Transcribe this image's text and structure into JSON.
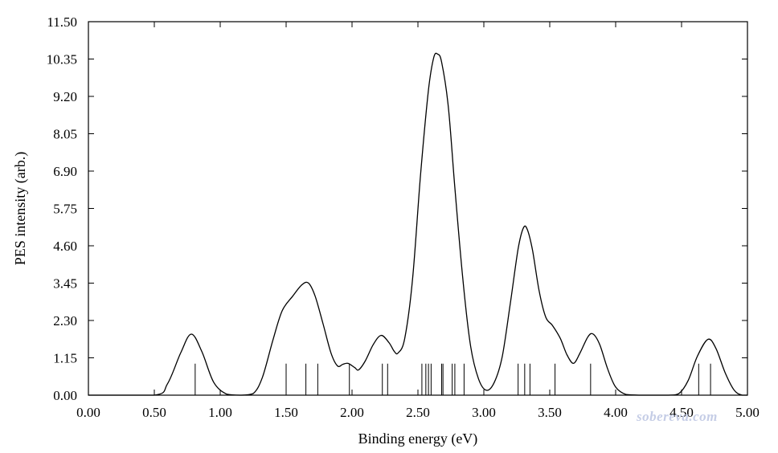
{
  "chart_data": {
    "type": "line",
    "title": "",
    "xlabel": "Binding energy (eV)",
    "ylabel": "PES intensity (arb.)",
    "xlim": [
      0.0,
      5.0
    ],
    "ylim": [
      0.0,
      11.5
    ],
    "x_ticks": [
      "0.00",
      "0.50",
      "1.00",
      "1.50",
      "2.00",
      "2.50",
      "3.00",
      "3.50",
      "4.00",
      "4.50",
      "5.00"
    ],
    "y_ticks": [
      "0.00",
      "1.15",
      "2.30",
      "3.45",
      "4.60",
      "5.75",
      "6.90",
      "8.05",
      "9.20",
      "10.35",
      "11.50"
    ],
    "grid": false,
    "legend": "none",
    "series": [
      {
        "kind": "curve",
        "points": [
          [
            0.0,
            0.0
          ],
          [
            0.5,
            0.0
          ],
          [
            0.6,
            0.35
          ],
          [
            0.7,
            1.3
          ],
          [
            0.78,
            1.88
          ],
          [
            0.86,
            1.35
          ],
          [
            0.95,
            0.4
          ],
          [
            1.05,
            0.03
          ],
          [
            1.15,
            0.0
          ],
          [
            1.25,
            0.05
          ],
          [
            1.32,
            0.55
          ],
          [
            1.4,
            1.7
          ],
          [
            1.47,
            2.6
          ],
          [
            1.55,
            3.05
          ],
          [
            1.62,
            3.4
          ],
          [
            1.67,
            3.45
          ],
          [
            1.72,
            3.05
          ],
          [
            1.78,
            2.2
          ],
          [
            1.84,
            1.3
          ],
          [
            1.89,
            0.9
          ],
          [
            1.93,
            0.95
          ],
          [
            1.97,
            0.98
          ],
          [
            2.02,
            0.85
          ],
          [
            2.05,
            0.78
          ],
          [
            2.1,
            1.05
          ],
          [
            2.16,
            1.55
          ],
          [
            2.22,
            1.84
          ],
          [
            2.28,
            1.62
          ],
          [
            2.32,
            1.35
          ],
          [
            2.35,
            1.3
          ],
          [
            2.4,
            1.75
          ],
          [
            2.46,
            3.6
          ],
          [
            2.52,
            6.8
          ],
          [
            2.58,
            9.4
          ],
          [
            2.62,
            10.4
          ],
          [
            2.65,
            10.5
          ],
          [
            2.68,
            10.25
          ],
          [
            2.73,
            8.9
          ],
          [
            2.78,
            6.4
          ],
          [
            2.84,
            3.6
          ],
          [
            2.9,
            1.5
          ],
          [
            2.96,
            0.5
          ],
          [
            3.02,
            0.15
          ],
          [
            3.08,
            0.4
          ],
          [
            3.14,
            1.2
          ],
          [
            3.2,
            2.8
          ],
          [
            3.26,
            4.5
          ],
          [
            3.3,
            5.15
          ],
          [
            3.33,
            5.1
          ],
          [
            3.37,
            4.45
          ],
          [
            3.42,
            3.2
          ],
          [
            3.47,
            2.4
          ],
          [
            3.52,
            2.15
          ],
          [
            3.58,
            1.75
          ],
          [
            3.63,
            1.25
          ],
          [
            3.68,
            0.98
          ],
          [
            3.73,
            1.3
          ],
          [
            3.79,
            1.8
          ],
          [
            3.83,
            1.88
          ],
          [
            3.88,
            1.55
          ],
          [
            3.94,
            0.8
          ],
          [
            4.0,
            0.25
          ],
          [
            4.08,
            0.02
          ],
          [
            4.2,
            0.0
          ],
          [
            4.4,
            0.0
          ],
          [
            4.48,
            0.05
          ],
          [
            4.55,
            0.45
          ],
          [
            4.62,
            1.2
          ],
          [
            4.7,
            1.72
          ],
          [
            4.76,
            1.45
          ],
          [
            4.83,
            0.7
          ],
          [
            4.9,
            0.15
          ],
          [
            4.96,
            0.0
          ],
          [
            5.0,
            0.0
          ]
        ]
      },
      {
        "kind": "sticks",
        "height": 0.97,
        "x": [
          0.81,
          1.5,
          1.65,
          1.74,
          1.98,
          2.23,
          2.27,
          2.53,
          2.56,
          2.58,
          2.6,
          2.68,
          2.69,
          2.76,
          2.78,
          2.85,
          3.26,
          3.31,
          3.35,
          3.54,
          3.81,
          4.63,
          4.72
        ]
      }
    ]
  },
  "watermark": "sobereva.com"
}
